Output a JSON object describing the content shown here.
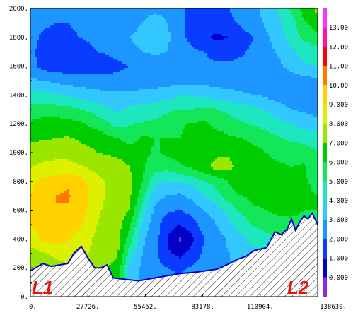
{
  "chart_data": {
    "type": "contour",
    "title": "",
    "xlabel": "",
    "ylabel": "",
    "xlim": [
      0,
      138630
    ],
    "ylim": [
      0,
      2000
    ],
    "x_ticks": [
      0,
      27726,
      55452,
      83178,
      110904,
      138630
    ],
    "x_tick_labels": [
      "0.",
      "27726.",
      "55452.",
      "83178.",
      "110904.",
      "138630."
    ],
    "y_ticks": [
      0,
      200,
      400,
      600,
      800,
      1000,
      1200,
      1400,
      1600,
      1800,
      2000
    ],
    "y_tick_labels": [
      "0.",
      "200.",
      "400.",
      "600.",
      "800.",
      "1000.",
      "1200.",
      "1400.",
      "1600.",
      "1800.",
      "2000."
    ],
    "colorbar": {
      "levels": [
        -1,
        0,
        1,
        2,
        3,
        4,
        5,
        6,
        7,
        8,
        9,
        10,
        11,
        12,
        13,
        14
      ],
      "labels": [
        "0.000",
        "1.000",
        "2.000",
        "3.000",
        "4.000",
        "5.000",
        "6.000",
        "7.000",
        "8.000",
        "9.000",
        "10.00",
        "11.00",
        "12.00",
        "13.00"
      ],
      "label_values": [
        0,
        1,
        2,
        3,
        4,
        5,
        6,
        7,
        8,
        9,
        10,
        11,
        12,
        13
      ],
      "colors": [
        "#8a2be2",
        "#0000c8",
        "#0a3cff",
        "#1e96ff",
        "#32c8ff",
        "#1ee6be",
        "#14e65a",
        "#00cd00",
        "#9be600",
        "#dcf000",
        "#ffd200",
        "#ff7800",
        "#ff0000",
        "#ff14a0",
        "#ff32ff",
        "#c832ff"
      ]
    },
    "terrain": {
      "x": [
        0,
        2500,
        6000,
        10000,
        14000,
        18000,
        21000,
        24500,
        27700,
        31000,
        34000,
        37000,
        40000,
        46000,
        52000,
        60000,
        64000,
        72000,
        80000,
        90000,
        96000,
        100000,
        104000,
        108000,
        114000,
        118000,
        121000,
        124000,
        126000,
        128000,
        130000,
        132000,
        134000,
        136000,
        138630
      ],
      "y": [
        180,
        200,
        230,
        210,
        220,
        230,
        300,
        350,
        270,
        200,
        200,
        220,
        130,
        120,
        110,
        130,
        140,
        160,
        170,
        190,
        230,
        260,
        280,
        320,
        340,
        450,
        430,
        470,
        540,
        460,
        520,
        560,
        540,
        580,
        500
      ]
    },
    "annotations": [
      "L1",
      "L2"
    ],
    "field": {
      "x_nodes": [
        0,
        6000,
        12000,
        18000,
        24000,
        30000,
        36000,
        42000,
        48000,
        54000,
        60000,
        66000,
        72000,
        78000,
        84000,
        90000,
        96000,
        102000,
        108000,
        114000,
        120000,
        126000,
        132000,
        138630
      ],
      "y_nodes": [
        0,
        100,
        200,
        300,
        400,
        500,
        600,
        700,
        800,
        900,
        1000,
        1100,
        1200,
        1300,
        1400,
        1500,
        1600,
        1700,
        1800,
        1900,
        2000
      ],
      "values": [
        [
          6.4,
          6.4,
          6.6,
          6.8,
          6.8,
          6.6,
          6.4,
          6.0,
          3.5,
          3.0,
          2.8,
          2.6,
          2.4,
          2.6,
          2.8,
          3.2,
          3.2,
          3.4,
          3.6,
          3.8,
          4.0,
          4.2,
          5.0,
          5.2
        ],
        [
          6.6,
          6.8,
          7.0,
          7.2,
          7.1,
          6.9,
          6.6,
          6.1,
          3.4,
          2.9,
          2.7,
          2.4,
          2.2,
          2.4,
          2.7,
          3.1,
          3.2,
          3.4,
          3.6,
          3.8,
          4.0,
          4.2,
          5.0,
          5.2
        ],
        [
          7.2,
          7.4,
          7.6,
          7.8,
          7.6,
          7.4,
          7.1,
          6.6,
          3.6,
          2.8,
          2.4,
          2.0,
          1.8,
          2.1,
          2.5,
          2.9,
          3.0,
          3.2,
          3.5,
          3.7,
          4.0,
          4.3,
          5.1,
          5.3
        ],
        [
          7.6,
          7.9,
          8.2,
          8.4,
          8.2,
          7.9,
          7.6,
          7.2,
          4.5,
          3.0,
          2.2,
          1.2,
          0.6,
          1.4,
          2.2,
          2.8,
          3.0,
          3.4,
          3.8,
          4.0,
          4.3,
          4.6,
          5.2,
          5.4
        ],
        [
          8.4,
          9.2,
          9.4,
          9.1,
          8.5,
          8.0,
          7.6,
          7.3,
          5.5,
          3.2,
          2.4,
          1.0,
          -0.2,
          0.8,
          2.0,
          2.6,
          3.2,
          3.8,
          4.3,
          4.6,
          5.0,
          5.3,
          5.5,
          5.6
        ],
        [
          9.0,
          9.6,
          9.8,
          9.6,
          9.2,
          8.2,
          7.7,
          7.4,
          6.2,
          3.8,
          2.5,
          1.4,
          1.0,
          1.6,
          2.4,
          3.0,
          3.8,
          4.5,
          5.1,
          5.5,
          5.7,
          5.8,
          5.8,
          5.9
        ],
        [
          9.2,
          9.8,
          10.0,
          9.9,
          9.5,
          8.5,
          7.8,
          7.5,
          7.0,
          4.4,
          2.8,
          2.2,
          1.9,
          2.4,
          3.0,
          3.6,
          4.4,
          5.2,
          5.8,
          6.0,
          6.2,
          6.2,
          6.0,
          6.0
        ],
        [
          9.0,
          9.6,
          10.0,
          10.1,
          9.6,
          8.6,
          8.0,
          7.6,
          7.2,
          5.4,
          3.4,
          3.0,
          2.8,
          3.3,
          4.0,
          4.6,
          5.6,
          6.0,
          6.3,
          6.4,
          6.5,
          6.3,
          6.1,
          6.0
        ],
        [
          8.8,
          9.2,
          9.6,
          9.9,
          9.5,
          8.5,
          8.0,
          7.7,
          7.3,
          6.0,
          4.4,
          4.0,
          4.0,
          4.4,
          5.0,
          5.4,
          6.1,
          6.6,
          6.5,
          6.5,
          6.4,
          6.2,
          6.1,
          5.8
        ],
        [
          8.0,
          8.2,
          8.3,
          8.4,
          8.1,
          7.8,
          7.6,
          7.4,
          7.0,
          6.2,
          5.3,
          5.3,
          5.8,
          6.2,
          6.6,
          7.4,
          7.2,
          6.6,
          6.3,
          6.2,
          6.1,
          6.0,
          6.1,
          5.4
        ],
        [
          7.4,
          7.6,
          7.7,
          7.6,
          7.3,
          7.1,
          6.9,
          6.8,
          6.5,
          6.3,
          5.9,
          6.2,
          6.5,
          6.6,
          6.6,
          6.8,
          6.9,
          6.6,
          6.3,
          6.0,
          5.8,
          5.7,
          5.6,
          5.0
        ],
        [
          6.8,
          6.9,
          7.0,
          7.1,
          6.9,
          6.7,
          6.3,
          6.0,
          5.6,
          6.2,
          6.0,
          6.0,
          6.0,
          6.4,
          6.6,
          6.5,
          6.2,
          6.0,
          5.7,
          5.4,
          5.1,
          4.8,
          4.6,
          4.4
        ],
        [
          6.2,
          6.4,
          6.5,
          6.4,
          6.2,
          5.7,
          5.3,
          4.6,
          4.9,
          5.1,
          5.2,
          5.5,
          5.8,
          6.1,
          6.2,
          5.6,
          5.3,
          5.1,
          4.9,
          4.6,
          4.3,
          4.0,
          3.6,
          3.4
        ],
        [
          5.4,
          5.5,
          5.4,
          5.3,
          5.0,
          4.7,
          4.2,
          3.8,
          4.2,
          4.4,
          4.6,
          4.8,
          5.0,
          5.0,
          5.2,
          5.0,
          4.8,
          4.5,
          4.2,
          3.8,
          3.4,
          3.0,
          2.8,
          2.6
        ],
        [
          4.4,
          4.3,
          4.1,
          3.9,
          3.6,
          3.4,
          3.3,
          3.2,
          3.2,
          3.3,
          3.4,
          3.6,
          3.9,
          3.9,
          3.8,
          3.6,
          3.4,
          3.2,
          3.0,
          2.8,
          2.6,
          2.4,
          2.3,
          2.3
        ],
        [
          3.2,
          3.0,
          2.8,
          2.6,
          2.5,
          2.4,
          2.3,
          2.3,
          2.4,
          2.5,
          2.5,
          2.6,
          2.6,
          2.7,
          2.6,
          2.5,
          2.4,
          2.3,
          2.2,
          2.1,
          2.2,
          2.4,
          2.7,
          2.8
        ],
        [
          2.4,
          1.6,
          1.4,
          1.3,
          1.2,
          1.4,
          1.6,
          1.8,
          2.0,
          2.2,
          2.4,
          2.3,
          2.2,
          2.2,
          2.2,
          2.2,
          2.2,
          2.2,
          2.3,
          2.4,
          2.8,
          3.4,
          3.8,
          4.0
        ],
        [
          2.4,
          1.4,
          1.2,
          1.4,
          1.6,
          1.9,
          2.1,
          2.3,
          2.6,
          3.0,
          3.2,
          3.0,
          2.6,
          2.2,
          2.0,
          1.6,
          1.6,
          1.9,
          2.2,
          2.6,
          3.2,
          3.8,
          4.4,
          4.6
        ],
        [
          2.4,
          1.8,
          1.6,
          1.8,
          2.0,
          2.2,
          2.4,
          2.6,
          3.0,
          3.4,
          3.6,
          3.2,
          2.4,
          1.6,
          1.2,
          0.8,
          1.0,
          1.6,
          2.0,
          2.8,
          3.6,
          4.4,
          5.2,
          5.6
        ],
        [
          2.6,
          2.2,
          2.0,
          2.0,
          2.2,
          2.3,
          2.4,
          2.4,
          2.6,
          3.0,
          3.4,
          3.0,
          2.4,
          1.4,
          1.4,
          1.4,
          1.8,
          2.2,
          2.6,
          3.2,
          3.8,
          4.6,
          5.8,
          6.8
        ],
        [
          2.8,
          2.6,
          2.4,
          2.4,
          2.4,
          2.4,
          2.4,
          2.4,
          2.4,
          2.6,
          2.8,
          2.8,
          2.4,
          1.6,
          1.6,
          1.6,
          2.0,
          2.4,
          2.8,
          3.4,
          4.2,
          5.2,
          6.4,
          7.2
        ]
      ]
    }
  }
}
